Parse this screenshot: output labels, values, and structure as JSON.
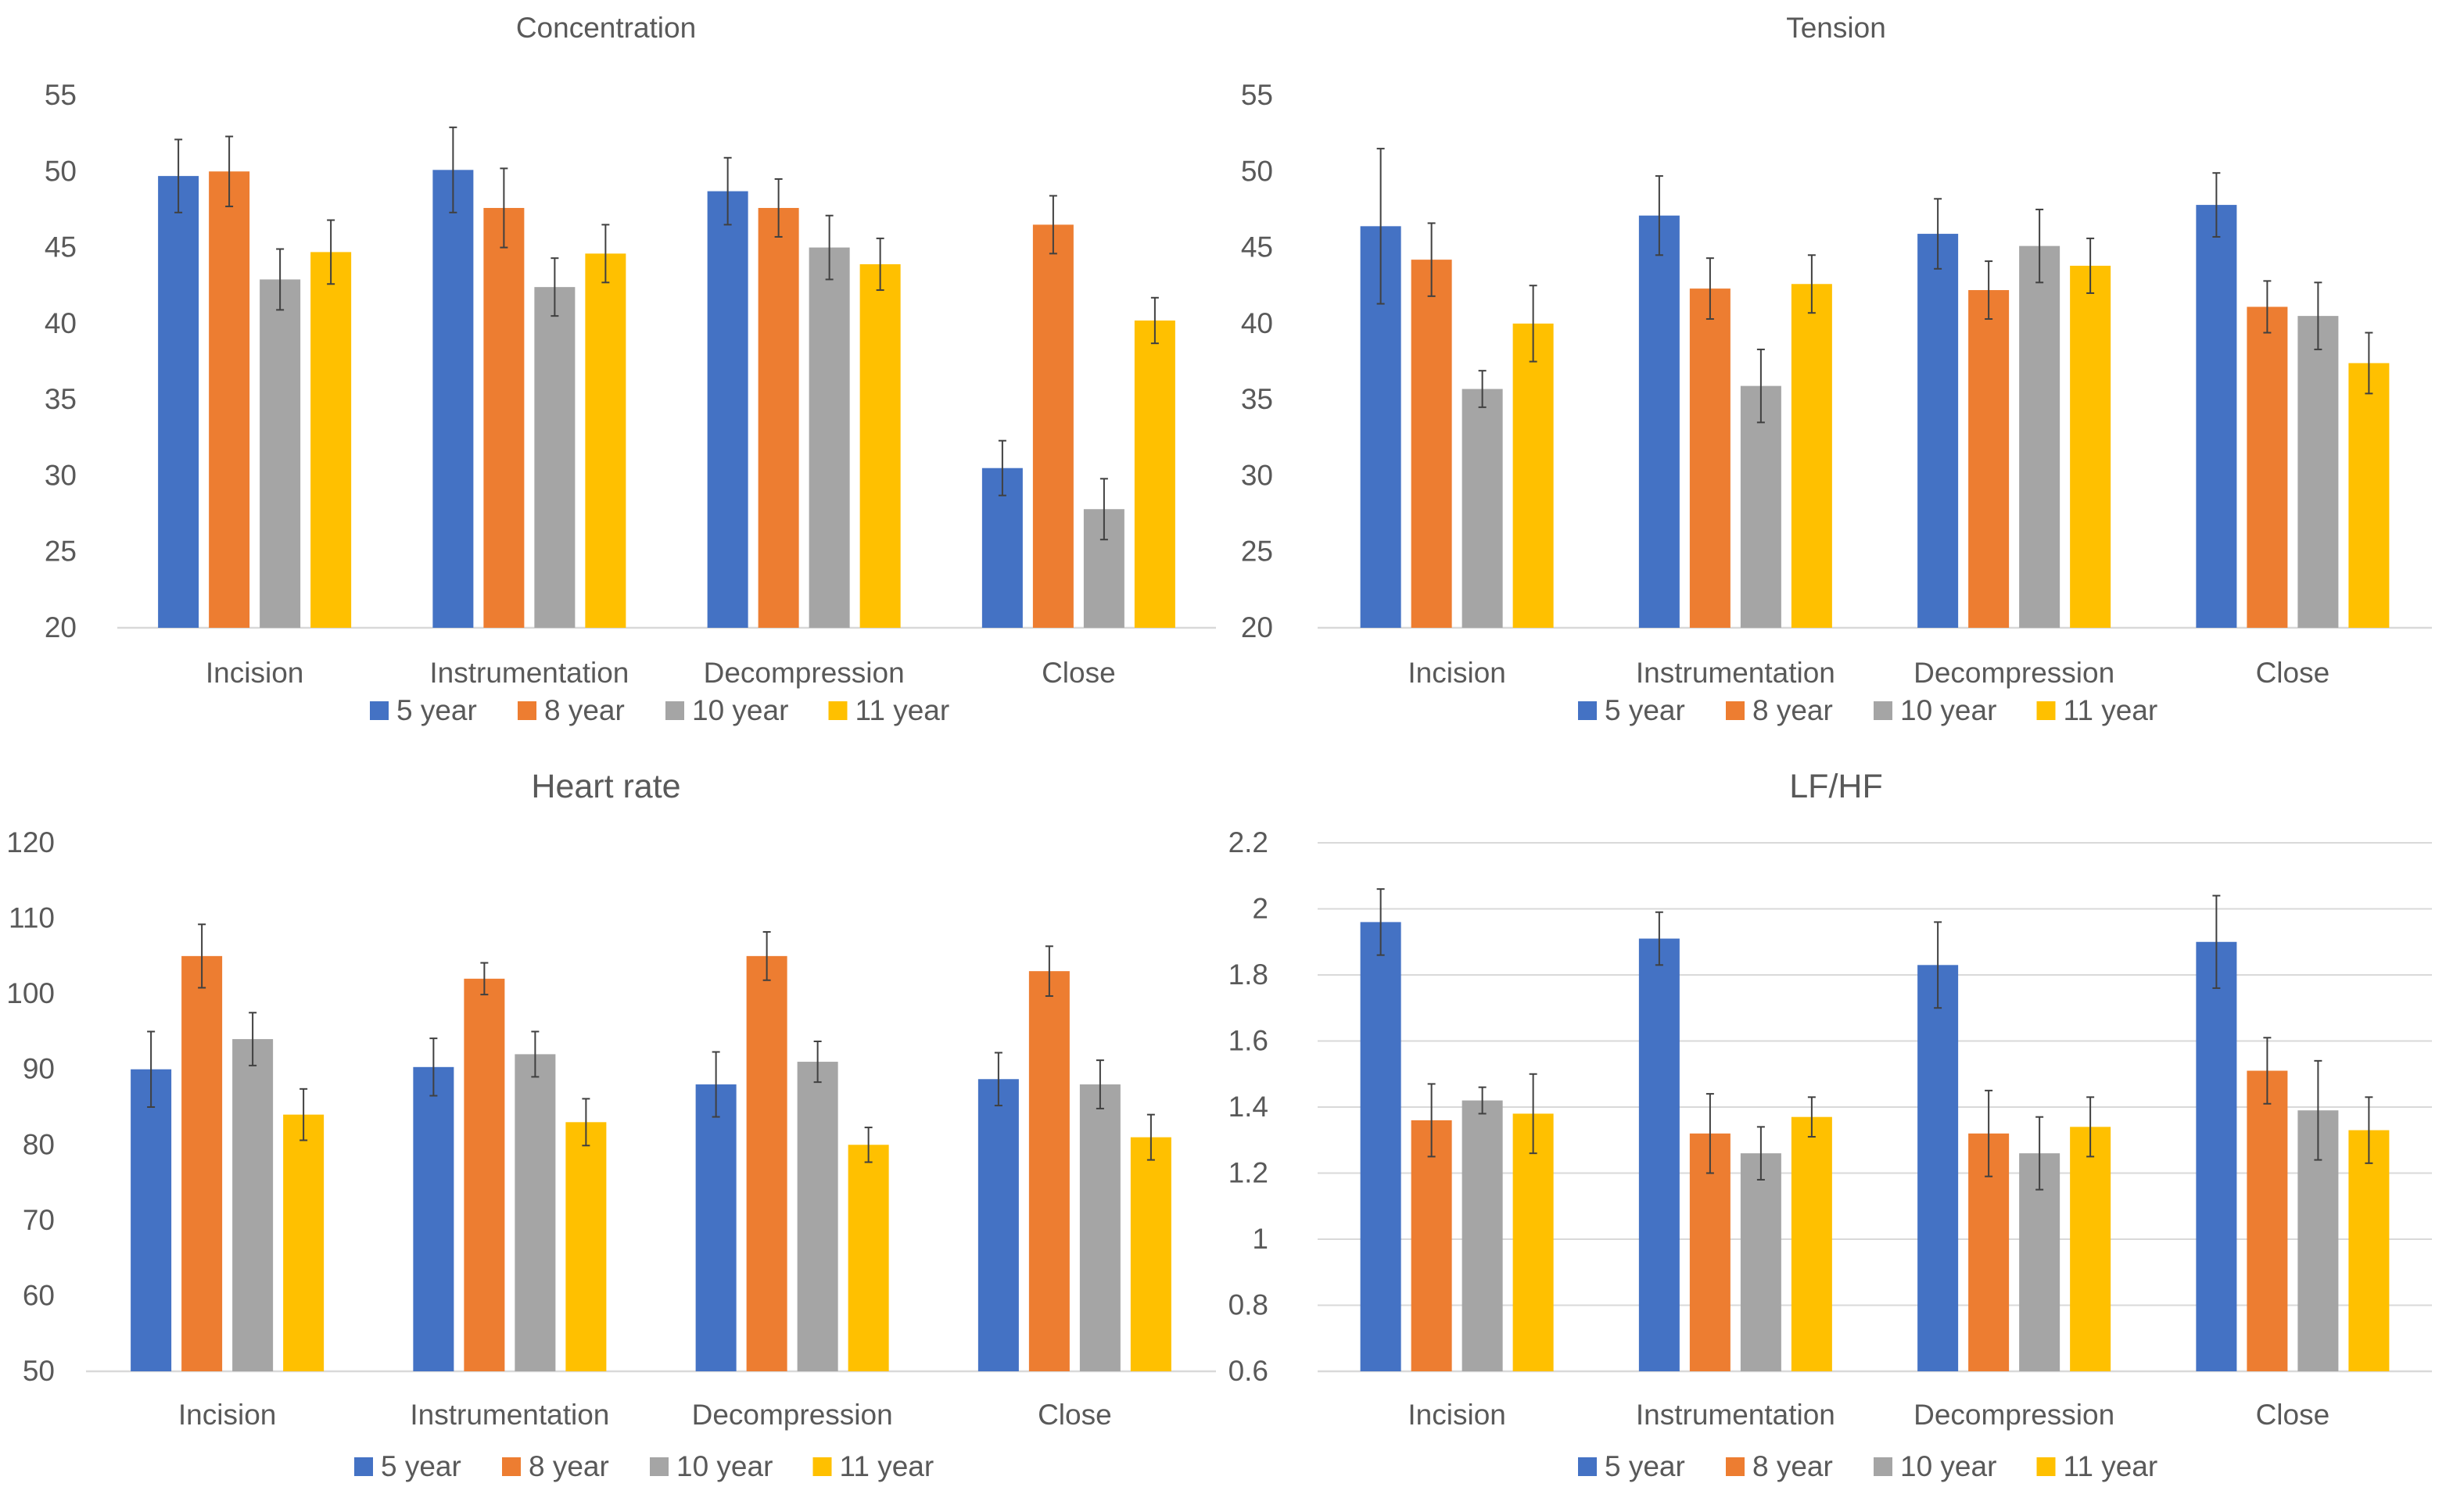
{
  "colors": {
    "series": [
      "#4472C4",
      "#ED7D31",
      "#A5A5A5",
      "#FFC000"
    ],
    "text": "#595959",
    "grid": "#D9D9D9",
    "error_bar": "#404040"
  },
  "chart_data": [
    {
      "id": "concentration",
      "type": "bar",
      "title": "Concentration",
      "xlabel": "",
      "ylabel": "",
      "categories": [
        "Incision",
        "Instrumentation",
        "Decompression",
        "Close"
      ],
      "ylim": [
        20,
        55
      ],
      "yticks": [
        20,
        25,
        30,
        35,
        40,
        45,
        50,
        55
      ],
      "grid": false,
      "legend_position": "bottom",
      "series": [
        {
          "name": "5 year",
          "values": [
            49.7,
            50.1,
            48.7,
            30.5
          ],
          "errors": [
            2.4,
            2.8,
            2.2,
            1.8
          ]
        },
        {
          "name": "8 year",
          "values": [
            50.0,
            47.6,
            47.6,
            46.5
          ],
          "errors": [
            2.3,
            2.6,
            1.9,
            1.9
          ]
        },
        {
          "name": "10 year",
          "values": [
            42.9,
            42.4,
            45.0,
            27.8
          ],
          "errors": [
            2.0,
            1.9,
            2.1,
            2.0
          ]
        },
        {
          "name": "11 year",
          "values": [
            44.7,
            44.6,
            43.9,
            40.2
          ],
          "errors": [
            2.1,
            1.9,
            1.7,
            1.5
          ]
        }
      ]
    },
    {
      "id": "tension",
      "type": "bar",
      "title": "Tension",
      "xlabel": "",
      "ylabel": "",
      "categories": [
        "Incision",
        "Instrumentation",
        "Decompression",
        "Close"
      ],
      "ylim": [
        20,
        55
      ],
      "yticks": [
        20,
        25,
        30,
        35,
        40,
        45,
        50,
        55
      ],
      "grid": false,
      "legend_position": "bottom",
      "series": [
        {
          "name": "5 year",
          "values": [
            46.4,
            47.1,
            45.9,
            47.8
          ],
          "errors": [
            5.1,
            2.6,
            2.3,
            2.1
          ]
        },
        {
          "name": "8 year",
          "values": [
            44.2,
            42.3,
            42.2,
            41.1
          ],
          "errors": [
            2.4,
            2.0,
            1.9,
            1.7
          ]
        },
        {
          "name": "10 year",
          "values": [
            35.7,
            35.9,
            45.1,
            40.5
          ],
          "errors": [
            1.2,
            2.4,
            2.4,
            2.2
          ]
        },
        {
          "name": "11 year",
          "values": [
            40.0,
            42.6,
            43.8,
            37.4
          ],
          "errors": [
            2.5,
            1.9,
            1.8,
            2.0
          ]
        }
      ]
    },
    {
      "id": "heart-rate",
      "type": "bar",
      "title": "Heart rate",
      "xlabel": "",
      "ylabel": "",
      "categories": [
        "Incision",
        "Instrumentation",
        "Decompression",
        "Close"
      ],
      "ylim": [
        50,
        120
      ],
      "yticks": [
        50,
        60,
        70,
        80,
        90,
        100,
        110,
        120
      ],
      "grid": false,
      "legend_position": "bottom",
      "series": [
        {
          "name": "5 year",
          "values": [
            90,
            90.3,
            88,
            88.7
          ],
          "errors": [
            5.0,
            3.8,
            4.3,
            3.5
          ]
        },
        {
          "name": "8 year",
          "values": [
            105,
            102,
            105,
            103
          ],
          "errors": [
            4.2,
            2.1,
            3.2,
            3.3
          ]
        },
        {
          "name": "10 year",
          "values": [
            94,
            92,
            91,
            88
          ],
          "errors": [
            3.5,
            3.0,
            2.7,
            3.2
          ]
        },
        {
          "name": "11 year",
          "values": [
            84,
            83,
            80,
            81
          ],
          "errors": [
            3.4,
            3.1,
            2.3,
            3.0
          ]
        }
      ]
    },
    {
      "id": "lf-hf",
      "type": "bar",
      "title": "LF/HF",
      "xlabel": "",
      "ylabel": "",
      "categories": [
        "Incision",
        "Instrumentation",
        "Decompression",
        "Close"
      ],
      "ylim": [
        0.6,
        2.2
      ],
      "yticks": [
        "0.6",
        "0.8",
        "1",
        "1.2",
        "1.4",
        "1.6",
        "1.8",
        "2",
        "2.2"
      ],
      "grid": true,
      "legend_position": "bottom",
      "series": [
        {
          "name": "5 year",
          "values": [
            1.96,
            1.91,
            1.83,
            1.9
          ],
          "errors": [
            0.1,
            0.08,
            0.13,
            0.14
          ]
        },
        {
          "name": "8 year",
          "values": [
            1.36,
            1.32,
            1.32,
            1.51
          ],
          "errors": [
            0.11,
            0.12,
            0.13,
            0.1
          ]
        },
        {
          "name": "10 year",
          "values": [
            1.42,
            1.26,
            1.26,
            1.39
          ],
          "errors": [
            0.04,
            0.08,
            0.11,
            0.15
          ]
        },
        {
          "name": "11 year",
          "values": [
            1.38,
            1.37,
            1.34,
            1.33
          ],
          "errors": [
            0.12,
            0.06,
            0.09,
            0.1
          ]
        }
      ]
    }
  ]
}
